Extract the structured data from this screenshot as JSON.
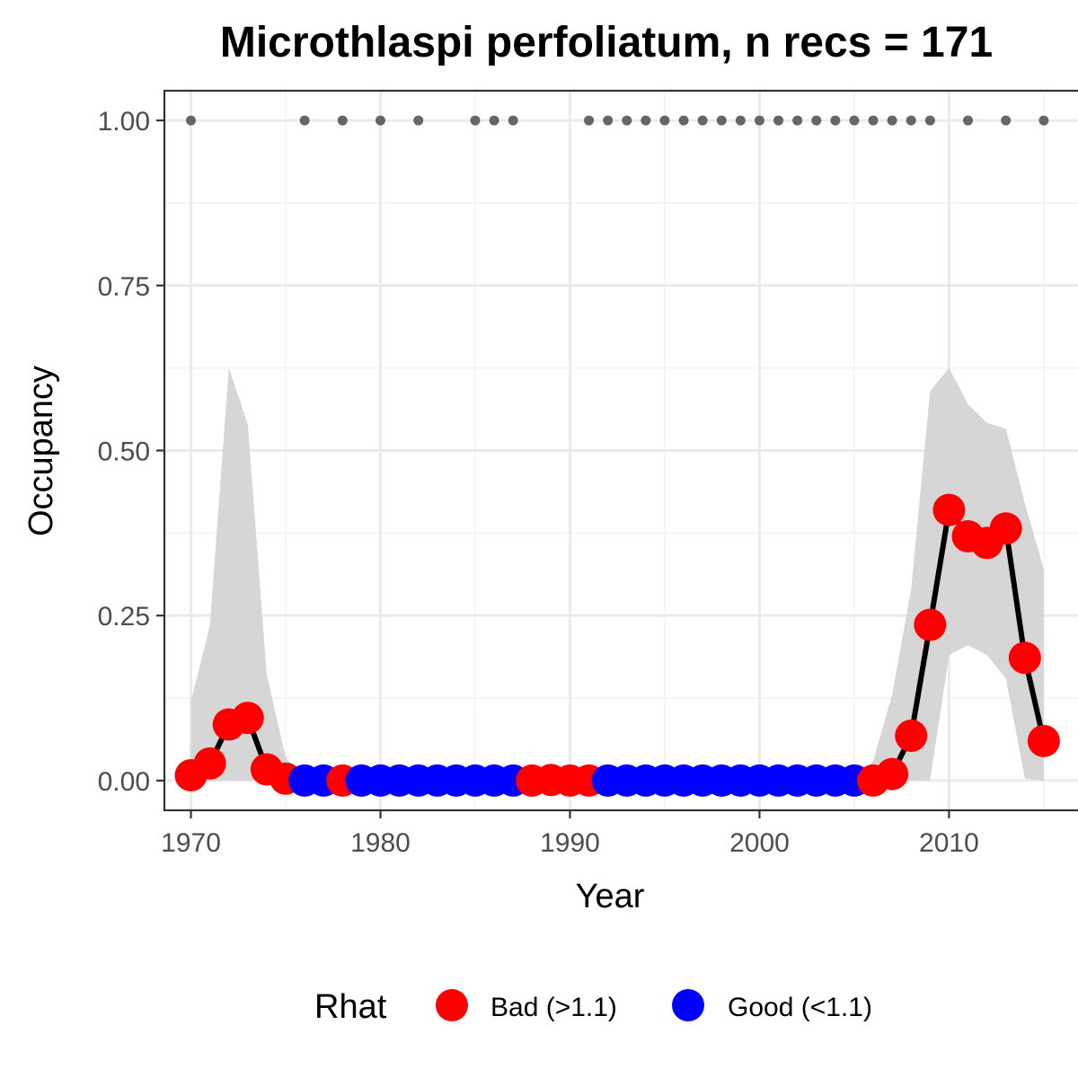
{
  "chart_data": {
    "type": "line",
    "title": "Microthlaspi perfoliatum, n recs = 171",
    "xlabel": "Year",
    "ylabel": "Occupancy",
    "xlim": [
      1968.6,
      2016.9
    ],
    "ylim": [
      -0.045,
      1.045
    ],
    "x_ticks": [
      1970,
      1980,
      1990,
      2000,
      2010
    ],
    "x_tick_labels": [
      "1970",
      "1980",
      "1990",
      "2000",
      "2010"
    ],
    "y_ticks": [
      0,
      0.25,
      0.5,
      0.75,
      1.0
    ],
    "y_tick_labels": [
      "0.00",
      "0.25",
      "0.50",
      "0.75",
      "1.00"
    ],
    "grid": true,
    "legend": {
      "title": "Rhat",
      "position": "bottom",
      "entries": [
        {
          "label": "Bad (>1.1)",
          "color": "#ff0000"
        },
        {
          "label": "Good (<1.1)",
          "color": "#0000ff"
        }
      ]
    },
    "colors": {
      "bad": "#ff0000",
      "good": "#0000ff",
      "line": "#000000",
      "ribbon": "#d6d6d6",
      "records": "#666666"
    },
    "series": [
      {
        "x": [
          1970,
          1971,
          1972,
          1973,
          1974,
          1975,
          1976,
          1977,
          1978,
          1979,
          1980,
          1981,
          1982,
          1983,
          1984,
          1985,
          1986,
          1987,
          1988,
          1989,
          1990,
          1991,
          1992,
          1993,
          1994,
          1995,
          1996,
          1997,
          1998,
          1999,
          2000,
          2001,
          2002,
          2003,
          2004,
          2005,
          2006,
          2007,
          2008,
          2009,
          2010,
          2011,
          2012,
          2013,
          2014,
          2015
        ],
        "y": [
          0.008,
          0.026,
          0.085,
          0.095,
          0.017,
          0.003,
          0,
          0,
          0,
          0,
          0,
          0,
          0,
          0,
          0,
          0,
          0,
          0,
          0,
          0.001,
          0,
          0,
          0,
          0,
          0,
          0,
          0,
          0,
          0,
          0,
          0,
          0,
          0,
          0,
          0,
          0,
          0,
          0.01,
          0.068,
          0.236,
          0.41,
          0.37,
          0.36,
          0.382,
          0.186,
          0.06
        ],
        "rhat": [
          "Bad",
          "Bad",
          "Bad",
          "Bad",
          "Bad",
          "Bad",
          "Good",
          "Good",
          "Bad",
          "Good",
          "Good",
          "Good",
          "Good",
          "Good",
          "Good",
          "Good",
          "Good",
          "Good",
          "Bad",
          "Bad",
          "Bad",
          "Bad",
          "Good",
          "Good",
          "Good",
          "Good",
          "Good",
          "Good",
          "Good",
          "Good",
          "Good",
          "Good",
          "Good",
          "Good",
          "Good",
          "Good",
          "Bad",
          "Bad",
          "Bad",
          "Bad",
          "Bad",
          "Bad",
          "Bad",
          "Bad",
          "Bad",
          "Bad"
        ],
        "lower": [
          0,
          0,
          0,
          0,
          0,
          0,
          0,
          0,
          0,
          0,
          0,
          0,
          0,
          0,
          0,
          0,
          0,
          0,
          0,
          0,
          0,
          0,
          0,
          0,
          0,
          0,
          0,
          0,
          0,
          0,
          0,
          0,
          0,
          0,
          0,
          0,
          0,
          0,
          0,
          0,
          0.19,
          0.205,
          0.19,
          0.155,
          0.003,
          0
        ],
        "upper": [
          0.12,
          0.235,
          0.625,
          0.54,
          0.16,
          0.035,
          0,
          0,
          0,
          0,
          0,
          0,
          0,
          0,
          0,
          0,
          0,
          0,
          0,
          0,
          0,
          0,
          0,
          0,
          0,
          0,
          0,
          0,
          0,
          0,
          0,
          0,
          0,
          0,
          0,
          0,
          0.03,
          0.13,
          0.29,
          0.59,
          0.625,
          0.57,
          0.542,
          0.533,
          0.42,
          0.32
        ]
      }
    ],
    "records": {
      "x": [
        1970,
        1976,
        1978,
        1980,
        1982,
        1985,
        1986,
        1987,
        1991,
        1992,
        1993,
        1994,
        1995,
        1996,
        1997,
        1998,
        1999,
        2000,
        2001,
        2002,
        2003,
        2004,
        2005,
        2006,
        2007,
        2008,
        2009,
        2011,
        2013,
        2015
      ],
      "y": 1.0
    }
  }
}
